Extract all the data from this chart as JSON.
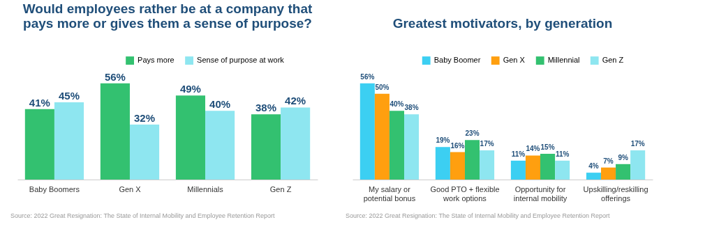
{
  "chart_data": [
    {
      "type": "bar",
      "title": [
        "Would employees rather be at a company that",
        "pays more or gives them a sense of purpose?"
      ],
      "categories": [
        "Baby Boomers",
        "Gen X",
        "Millennials",
        "Gen Z"
      ],
      "legend": "top right",
      "series": [
        {
          "name": "Pays more",
          "color": "#33c170",
          "values": [
            41,
            56,
            49,
            38
          ],
          "value_labels": [
            "41%",
            "56%",
            "49%",
            "38%"
          ]
        },
        {
          "name": "Sense of purpose at work",
          "color": "#8ee6f0",
          "values": [
            45,
            32,
            40,
            42
          ],
          "value_labels": [
            "45%",
            "32%",
            "40%",
            "42%"
          ]
        }
      ],
      "annotations": [
        "Source: 2022 Great Resignation: The State of Internal Mobility and Employee Retention Report"
      ]
    },
    {
      "type": "bar",
      "title": "Greatest motivators, by generation",
      "categories": [
        "My salary or potential bonus",
        "Good PTO + flexible work options",
        "Opportunity for internal mobility",
        "Upskilling/reskilling offerings"
      ],
      "legend": "top right",
      "series": [
        {
          "name": "Baby Boomer",
          "color": "#3ccff2",
          "values": [
            56,
            19,
            11,
            4
          ],
          "value_labels": [
            "56%",
            "19%",
            "11%",
            "4%"
          ]
        },
        {
          "name": "Gen X",
          "color": "#ff9f0f",
          "values": [
            50,
            16,
            14,
            7
          ],
          "value_labels": [
            "50%",
            "16%",
            "14%",
            "7%"
          ]
        },
        {
          "name": "Millennial",
          "color": "#33c170",
          "values": [
            40,
            23,
            15,
            9
          ],
          "value_labels": [
            "40%",
            "23%",
            "15%",
            "9%"
          ]
        },
        {
          "name": "Gen Z",
          "color": "#8ee6f0",
          "values": [
            38,
            17,
            11,
            17
          ],
          "value_labels": [
            "38%",
            "17%",
            "11%",
            "17%"
          ]
        }
      ],
      "annotations": [
        "Source: 2022 Great Resignation: The State of Internal Mobility and Employee Retention Report"
      ]
    }
  ]
}
